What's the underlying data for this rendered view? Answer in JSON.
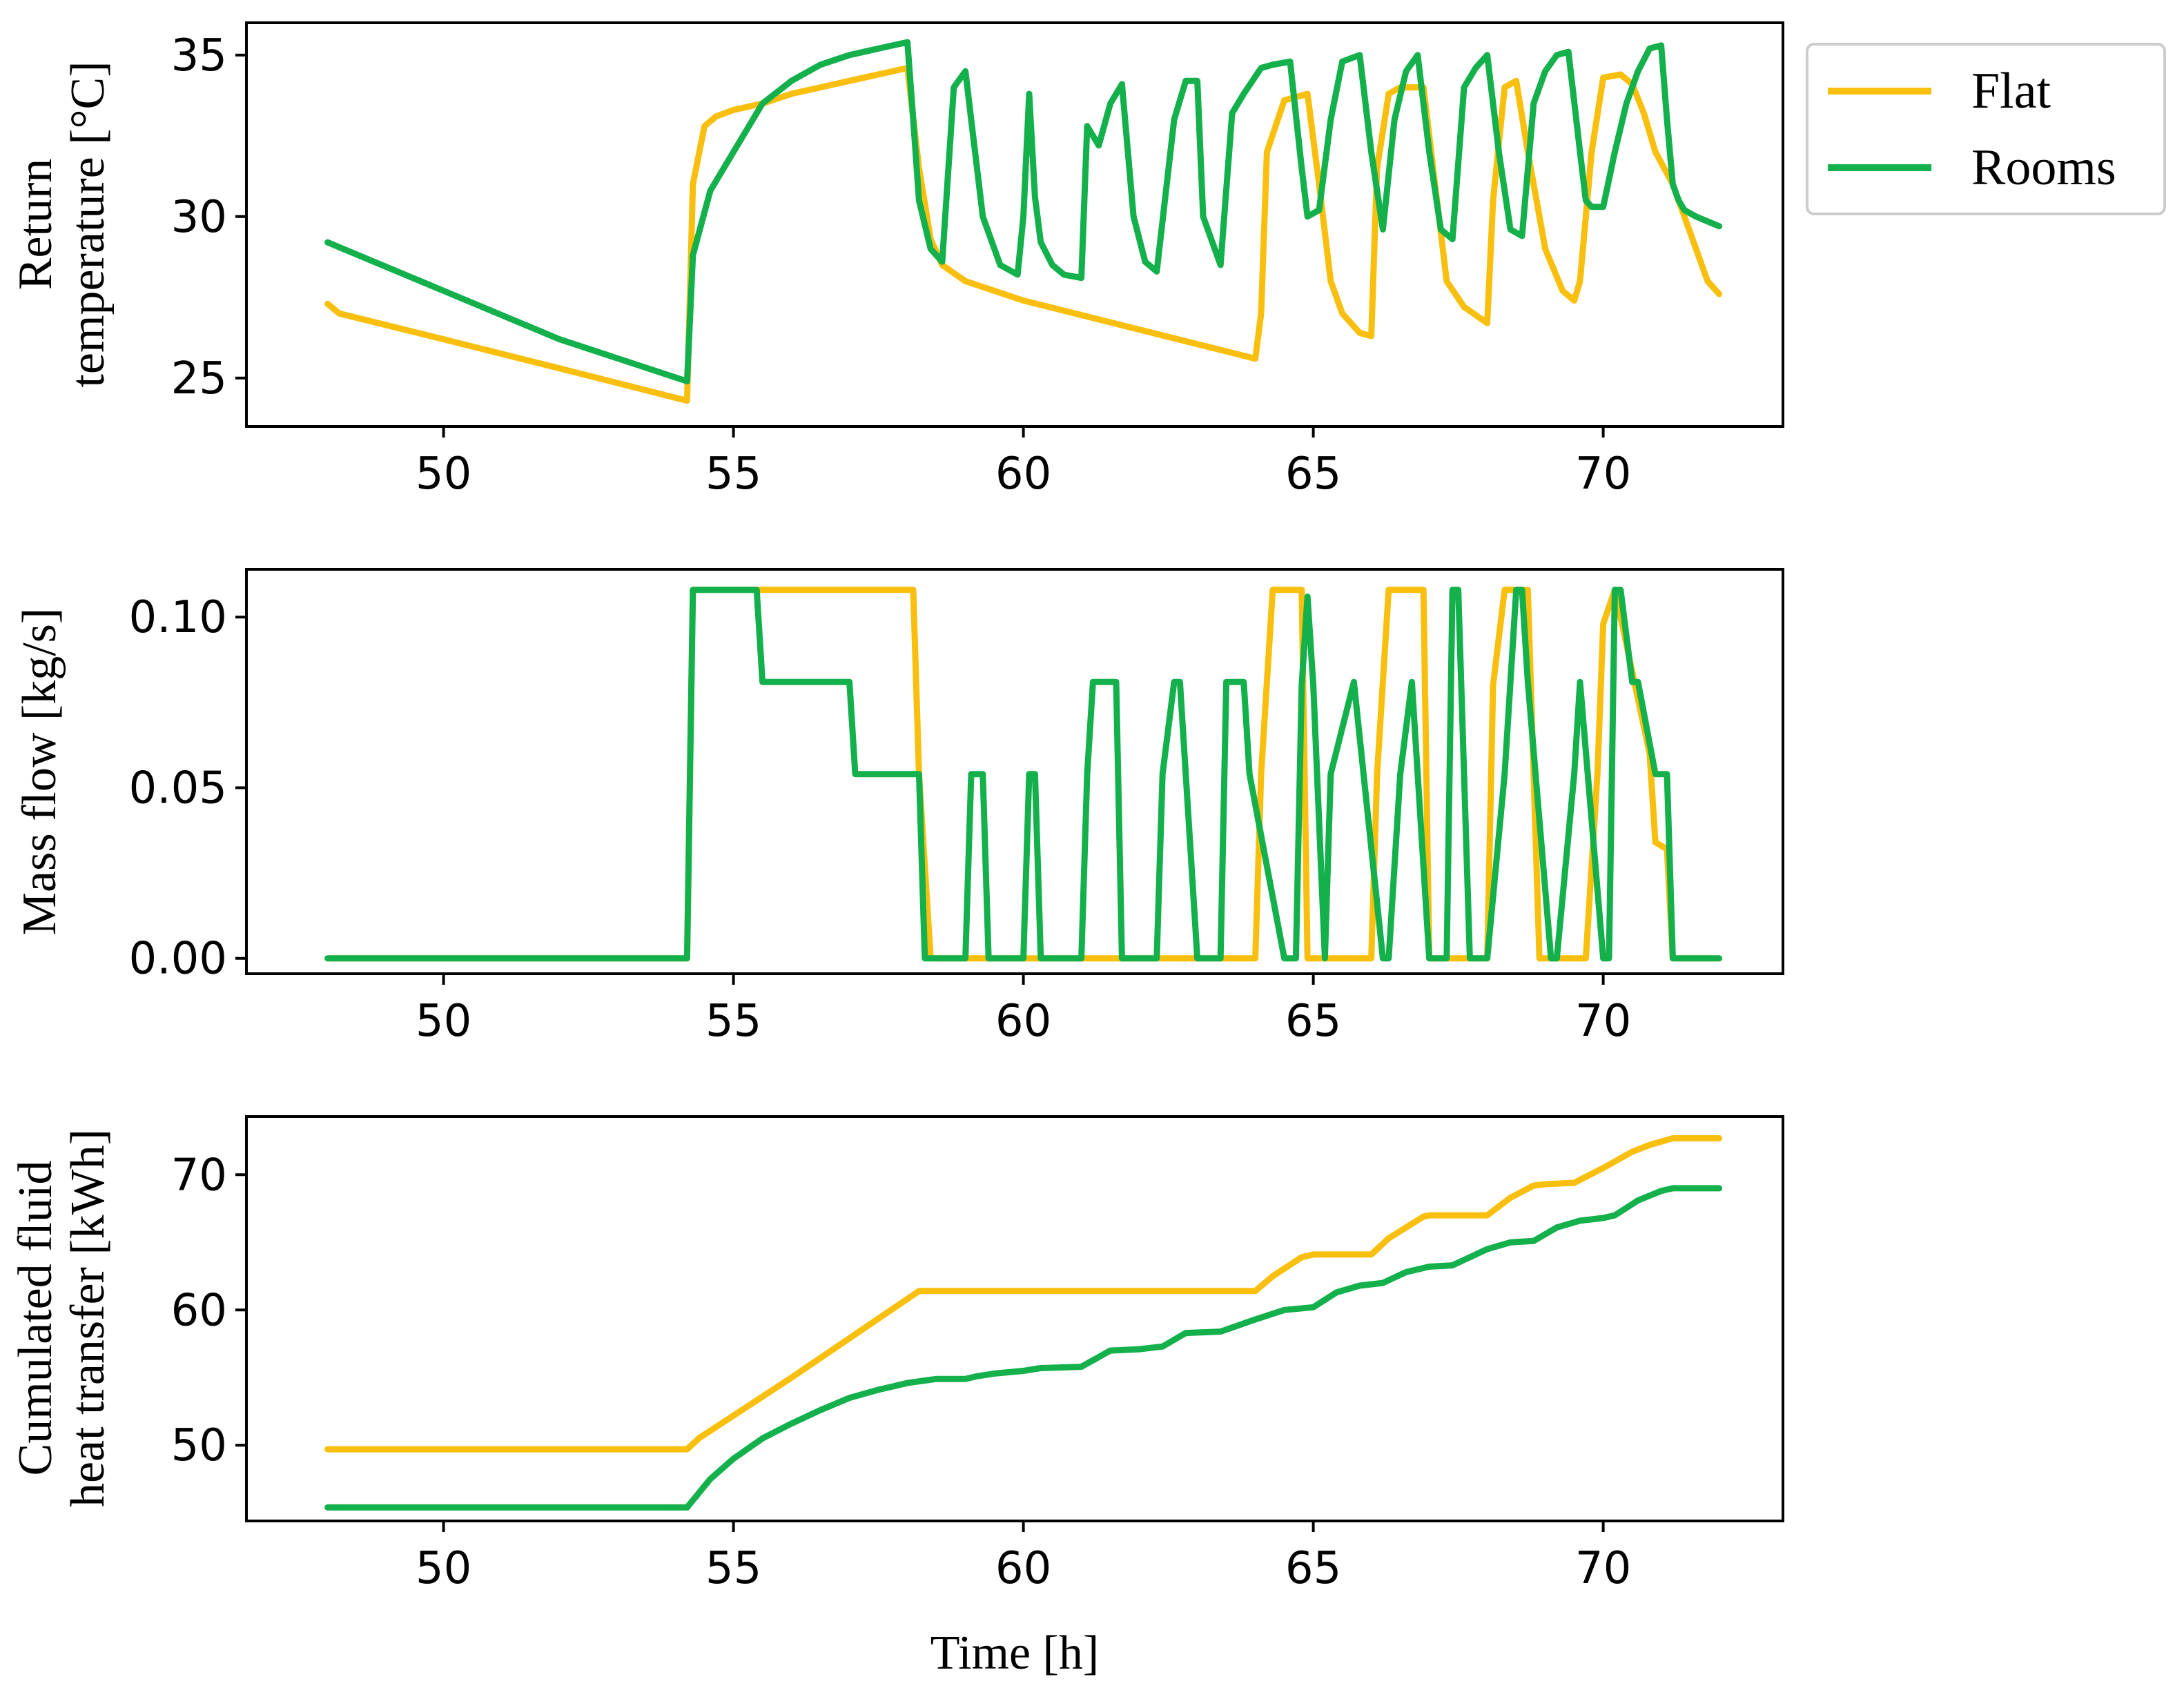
{
  "chart_data": [
    {
      "type": "line",
      "id": "return-temperature",
      "title": "",
      "xlabel": "",
      "ylabel": [
        "Return",
        "temperature [°C]"
      ],
      "xlim": [
        46.6,
        73.1
      ],
      "ylim": [
        23.5,
        36.0
      ],
      "xticks": [
        50,
        55,
        60,
        65,
        70
      ],
      "xtick_labels": [
        "50",
        "55",
        "60",
        "65",
        "70"
      ],
      "yticks": [
        25,
        30,
        35
      ],
      "ytick_labels": [
        "25",
        "30",
        "35"
      ],
      "grid": false,
      "legend": {
        "position": "outside-top-right",
        "entries": [
          "Flat",
          "Rooms"
        ]
      },
      "series": [
        {
          "name": "Flat",
          "color": "#F9BF0F",
          "x": [
            48.0,
            48.2,
            50.0,
            52.0,
            54.2,
            54.3,
            54.5,
            54.7,
            55.0,
            55.5,
            56.0,
            57.0,
            58.0,
            58.2,
            58.4,
            58.6,
            59.0,
            60.0,
            62.0,
            64.0,
            64.1,
            64.2,
            64.5,
            64.9,
            65.1,
            65.3,
            65.5,
            65.8,
            66.0,
            66.1,
            66.3,
            66.5,
            66.9,
            67.1,
            67.3,
            67.6,
            68.0,
            68.1,
            68.3,
            68.5,
            68.7,
            69.0,
            69.3,
            69.5,
            69.6,
            69.8,
            70.0,
            70.3,
            70.5,
            70.7,
            70.9,
            71.2,
            71.5,
            71.8,
            72.0
          ],
          "y": [
            27.3,
            27.0,
            26.2,
            25.3,
            24.3,
            31.0,
            32.8,
            33.1,
            33.3,
            33.5,
            33.8,
            34.2,
            34.6,
            31.5,
            29.3,
            28.5,
            28.0,
            27.4,
            26.5,
            25.6,
            27.0,
            32.0,
            33.6,
            33.8,
            31.0,
            28.0,
            27.0,
            26.4,
            26.3,
            31.5,
            33.8,
            34.0,
            34.0,
            31.0,
            28.0,
            27.2,
            26.7,
            30.5,
            34.0,
            34.2,
            32.0,
            29.0,
            27.7,
            27.4,
            28.0,
            32.0,
            34.3,
            34.4,
            34.1,
            33.2,
            32.0,
            31.0,
            29.5,
            28.0,
            27.6
          ]
        },
        {
          "name": "Rooms",
          "color": "#13B04C",
          "x": [
            48.0,
            50.0,
            52.0,
            54.2,
            54.3,
            54.6,
            55.0,
            55.5,
            56.0,
            56.5,
            57.0,
            57.5,
            58.0,
            58.1,
            58.2,
            58.4,
            58.6,
            58.8,
            59.0,
            59.3,
            59.6,
            59.9,
            60.0,
            60.1,
            60.2,
            60.3,
            60.5,
            60.7,
            61.0,
            61.1,
            61.3,
            61.5,
            61.7,
            61.9,
            62.1,
            62.3,
            62.6,
            62.8,
            63.0,
            63.1,
            63.4,
            63.6,
            63.8,
            64.1,
            64.3,
            64.6,
            64.8,
            64.9,
            65.1,
            65.3,
            65.5,
            65.8,
            66.0,
            66.2,
            66.4,
            66.6,
            66.8,
            67.0,
            67.2,
            67.4,
            67.6,
            67.8,
            68.0,
            68.2,
            68.4,
            68.6,
            68.8,
            69.0,
            69.2,
            69.4,
            69.6,
            69.7,
            69.8,
            70.0,
            70.2,
            70.4,
            70.6,
            70.8,
            71.0,
            71.1,
            71.2,
            71.3,
            71.4,
            71.6,
            72.0
          ],
          "y": [
            29.2,
            27.7,
            26.2,
            24.9,
            28.8,
            30.8,
            32.0,
            33.5,
            34.2,
            34.7,
            35.0,
            35.2,
            35.4,
            33.0,
            30.5,
            29.0,
            28.6,
            34.0,
            34.5,
            30.0,
            28.5,
            28.2,
            30.0,
            33.8,
            30.6,
            29.2,
            28.5,
            28.2,
            28.1,
            32.8,
            32.2,
            33.5,
            34.1,
            30.0,
            28.6,
            28.3,
            33.0,
            34.2,
            34.2,
            30.0,
            28.5,
            33.2,
            33.8,
            34.6,
            34.7,
            34.8,
            31.5,
            30.0,
            30.2,
            33.0,
            34.8,
            35.0,
            32.0,
            29.6,
            33.0,
            34.5,
            35.0,
            32.0,
            29.6,
            29.3,
            34.0,
            34.6,
            35.0,
            32.0,
            29.6,
            29.4,
            33.5,
            34.5,
            35.0,
            35.1,
            32.0,
            30.5,
            30.3,
            30.3,
            32.0,
            33.5,
            34.5,
            35.2,
            35.3,
            33.0,
            31.0,
            30.5,
            30.2,
            30.0,
            29.7
          ]
        }
      ]
    },
    {
      "type": "line",
      "id": "mass-flow",
      "title": "",
      "xlabel": "",
      "ylabel": [
        "Mass flow [kg/s]"
      ],
      "xlim": [
        46.6,
        73.1
      ],
      "ylim": [
        -0.0045,
        0.114
      ],
      "xticks": [
        50,
        55,
        60,
        65,
        70
      ],
      "xtick_labels": [
        "50",
        "55",
        "60",
        "65",
        "70"
      ],
      "yticks": [
        0.0,
        0.05,
        0.1
      ],
      "ytick_labels": [
        "0.00",
        "0.05",
        "0.10"
      ],
      "grid": false,
      "series": [
        {
          "name": "Flat",
          "color": "#F9BF0F",
          "x": [
            48.0,
            54.2,
            54.3,
            58.1,
            58.2,
            58.4,
            64.0,
            64.1,
            64.3,
            64.8,
            64.9,
            66.0,
            66.1,
            66.3,
            66.9,
            67.0,
            68.0,
            68.1,
            68.3,
            68.7,
            68.9,
            69.7,
            69.9,
            70.0,
            70.2,
            70.8,
            70.9,
            71.1,
            71.2,
            72.0
          ],
          "y": [
            0,
            0,
            0.108,
            0.108,
            0.054,
            0,
            0,
            0.054,
            0.108,
            0.108,
            0,
            0,
            0.054,
            0.108,
            0.108,
            0,
            0,
            0.08,
            0.108,
            0.108,
            0,
            0,
            0.054,
            0.098,
            0.108,
            0.06,
            0.034,
            0.032,
            0,
            0
          ]
        },
        {
          "name": "Rooms",
          "color": "#13B04C",
          "x": [
            48.0,
            54.2,
            54.3,
            55.4,
            55.5,
            57.0,
            57.1,
            58.2,
            58.3,
            59.0,
            59.1,
            59.2,
            59.3,
            59.4,
            60.0,
            60.1,
            60.2,
            60.3,
            61.0,
            61.1,
            61.2,
            61.6,
            61.7,
            62.3,
            62.4,
            62.6,
            62.7,
            63.0,
            63.4,
            63.5,
            63.8,
            63.9,
            64.5,
            64.7,
            64.8,
            64.9,
            65.0,
            65.2,
            65.3,
            65.7,
            66.2,
            66.3,
            66.5,
            66.7,
            67.0,
            67.3,
            67.4,
            67.5,
            67.7,
            68.0,
            68.3,
            68.5,
            68.6,
            68.7,
            69.1,
            69.2,
            69.5,
            69.6,
            70.0,
            70.1,
            70.2,
            70.3,
            70.5,
            70.6,
            70.9,
            71.1,
            71.2,
            72.0
          ],
          "y": [
            0,
            0,
            0.108,
            0.108,
            0.081,
            0.081,
            0.054,
            0.054,
            0,
            0,
            0.054,
            0.054,
            0.054,
            0,
            0,
            0.054,
            0.054,
            0,
            0,
            0.054,
            0.081,
            0.081,
            0,
            0,
            0.054,
            0.081,
            0.081,
            0,
            0,
            0.081,
            0.081,
            0.054,
            0,
            0,
            0.08,
            0.106,
            0.08,
            0,
            0.054,
            0.081,
            0,
            0,
            0.054,
            0.081,
            0,
            0,
            0.108,
            0.108,
            0,
            0,
            0.054,
            0.108,
            0.108,
            0.081,
            0,
            0,
            0.054,
            0.081,
            0,
            0,
            0.108,
            0.108,
            0.081,
            0.081,
            0.054,
            0.054,
            0,
            0
          ]
        }
      ]
    },
    {
      "type": "line",
      "id": "cumulated-heat",
      "title": "",
      "xlabel": "Time [h]",
      "ylabel": [
        "Cumulated fluid",
        "heat transfer [kWh]"
      ],
      "xlim": [
        46.6,
        73.1
      ],
      "ylim": [
        44.4,
        74.3
      ],
      "xticks": [
        50,
        55,
        60,
        65,
        70
      ],
      "xtick_labels": [
        "50",
        "55",
        "60",
        "65",
        "70"
      ],
      "yticks": [
        50,
        60,
        70
      ],
      "ytick_labels": [
        "50",
        "60",
        "70"
      ],
      "grid": false,
      "series": [
        {
          "name": "Flat",
          "color": "#F9BF0F",
          "x": [
            48.0,
            54.2,
            54.4,
            56.0,
            58.2,
            64.0,
            64.3,
            64.8,
            65.0,
            66.0,
            66.3,
            66.9,
            67.0,
            68.0,
            68.4,
            68.8,
            69.0,
            69.5,
            70.0,
            70.5,
            70.8,
            71.2,
            72.0
          ],
          "y": [
            49.7,
            49.7,
            50.5,
            55.0,
            61.4,
            61.4,
            62.5,
            63.9,
            64.1,
            64.1,
            65.3,
            66.9,
            67.0,
            67.0,
            68.3,
            69.2,
            69.3,
            69.4,
            70.5,
            71.7,
            72.2,
            72.7,
            72.7
          ]
        },
        {
          "name": "Rooms",
          "color": "#13B04C",
          "x": [
            48.0,
            54.2,
            54.6,
            55.0,
            55.5,
            56.0,
            56.5,
            57.0,
            57.5,
            58.0,
            58.5,
            59.0,
            59.2,
            59.5,
            60.0,
            60.3,
            61.0,
            61.5,
            62.0,
            62.4,
            62.8,
            63.4,
            64.0,
            64.5,
            65.0,
            65.4,
            65.8,
            66.2,
            66.6,
            67.0,
            67.4,
            67.8,
            68.0,
            68.4,
            68.8,
            69.2,
            69.6,
            70.0,
            70.2,
            70.6,
            71.0,
            71.2,
            72.0
          ],
          "y": [
            45.4,
            45.4,
            47.5,
            49.0,
            50.5,
            51.6,
            52.6,
            53.5,
            54.1,
            54.6,
            54.9,
            54.9,
            55.1,
            55.3,
            55.5,
            55.7,
            55.8,
            57.0,
            57.1,
            57.3,
            58.3,
            58.4,
            59.3,
            60.0,
            60.2,
            61.3,
            61.8,
            62.0,
            62.8,
            63.2,
            63.3,
            64.1,
            64.5,
            65.0,
            65.1,
            66.1,
            66.6,
            66.8,
            67.0,
            68.1,
            68.8,
            69.0,
            69.0
          ]
        }
      ]
    }
  ]
}
